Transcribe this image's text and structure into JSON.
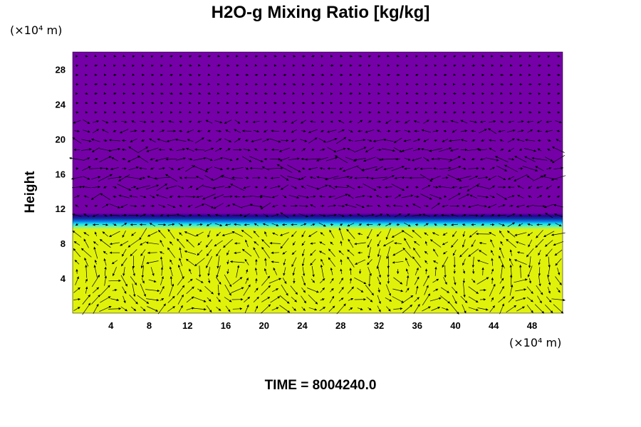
{
  "chart_data": {
    "type": "heatmap",
    "title": "H2O-g Mixing Ratio [kg/kg]",
    "ylabel": "Height",
    "xunit_label": "(×10⁴ m)",
    "yunit_label": "(×10⁴ m)",
    "x_ticks": [
      "4",
      "8",
      "12",
      "16",
      "20",
      "24",
      "28",
      "32",
      "36",
      "40",
      "44",
      "48"
    ],
    "y_ticks": [
      "4",
      "8",
      "12",
      "16",
      "20",
      "24",
      "28"
    ],
    "xlim": [
      0,
      51.2
    ],
    "ylim": [
      0,
      30
    ],
    "field": {
      "moist_layer_top": 9.6,
      "transition_top": 11.5,
      "moist_color": "#e0f20a",
      "dry_color": "#7500a8",
      "transition_colors": [
        "#e0f20a",
        "#7bf29a",
        "#16e6f0",
        "#0a78e8",
        "#1030a0",
        "#2a0090",
        "#7500a8"
      ]
    },
    "vector_overlay": true,
    "time_label": "TIME = 8004240.0"
  }
}
